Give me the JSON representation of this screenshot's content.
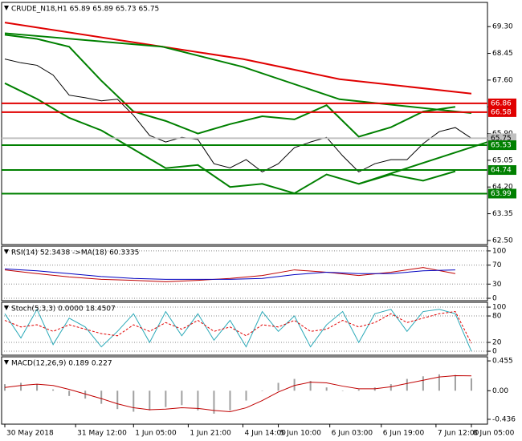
{
  "chart_data": [
    {
      "type": "line",
      "title": "CRUDE_N18,H1  65.89 65.89 65.73 65.75",
      "xlim": [
        -1,
        150
      ],
      "ylim": [
        62.37,
        70.07
      ],
      "grid": false,
      "yticks": [
        {
          "value": 69.3,
          "label": "69.30"
        },
        68.45,
        {
          "value": 67.6,
          "label": "67.60"
        },
        66.75,
        {
          "value": 65.9,
          "label": "65.90"
        },
        65.05,
        {
          "value": 64.2,
          "label": "64.20"
        },
        63.35,
        {
          "value": 62.5,
          "label": "62.50"
        }
      ],
      "series": [
        {
          "color": "#000000",
          "x": [
            0,
            5,
            10,
            15,
            20,
            25,
            30,
            35,
            40,
            45,
            50,
            55,
            60,
            65,
            70,
            75,
            80,
            85,
            90,
            95,
            100,
            105,
            110,
            115,
            120,
            125,
            130,
            135,
            140,
            145
          ],
          "values": [
            68.27,
            68.15,
            68.07,
            67.76,
            67.12,
            67.04,
            66.94,
            66.99,
            66.48,
            65.84,
            65.63,
            65.78,
            65.71,
            64.94,
            64.81,
            65.07,
            64.68,
            64.94,
            65.45,
            65.63,
            65.78,
            65.19,
            64.68,
            64.94,
            65.07,
            65.07,
            65.58,
            65.96,
            66.09,
            65.75
          ]
        },
        {
          "color": "#e00000",
          "x": [
            0,
            49,
            74,
            104,
            145
          ],
          "values": [
            69.43,
            68.66,
            68.27,
            67.63,
            67.17
          ]
        },
        {
          "color": "#008000",
          "x": [
            0,
            49,
            74,
            104,
            145
          ],
          "values": [
            69.09,
            68.66,
            68.02,
            66.99,
            66.55
          ]
        },
        {
          "color": "#008000",
          "x": [
            0,
            10,
            20,
            30,
            40,
            50,
            60,
            70,
            80,
            90,
            100,
            110,
            120,
            130,
            140
          ],
          "values": [
            69.04,
            68.91,
            68.66,
            67.58,
            66.6,
            66.3,
            65.9,
            66.2,
            66.45,
            66.35,
            66.8,
            65.8,
            66.1,
            66.6,
            66.75
          ]
        },
        {
          "color": "#008000",
          "x": [
            0,
            10,
            20,
            30,
            40,
            50,
            60,
            70,
            80,
            90,
            100,
            110,
            120,
            130,
            140
          ],
          "values": [
            67.5,
            67.0,
            66.4,
            66.0,
            65.4,
            64.8,
            64.9,
            64.2,
            64.3,
            64.0,
            64.6,
            64.3,
            64.6,
            64.4,
            64.7
          ]
        },
        {
          "color": "#008000",
          "x": [
            110,
            150
          ],
          "values": [
            64.3,
            65.63
          ]
        }
      ],
      "hlines": [
        {
          "value": 66.86,
          "color": "#e00000"
        },
        {
          "value": 66.58,
          "color": "#e00000"
        },
        {
          "value": 65.75,
          "color": "#c0c0c0"
        },
        {
          "value": 65.53,
          "color": "#008000"
        },
        {
          "value": 64.74,
          "color": "#008000"
        },
        {
          "value": 63.99,
          "color": "#008000"
        }
      ]
    },
    {
      "type": "line",
      "title": "RSI(14) 52.3438  ->MA(18) 60.3335",
      "xlim": [
        -1,
        150
      ],
      "ylim": [
        -5,
        110
      ],
      "grid": true,
      "yticks": [
        100,
        70,
        30,
        0
      ],
      "series": [
        {
          "color": "#c00000",
          "x": [
            0,
            10,
            20,
            30,
            40,
            50,
            60,
            70,
            80,
            90,
            100,
            110,
            120,
            130,
            140
          ],
          "values": [
            60,
            52,
            45,
            40,
            38,
            35,
            38,
            42,
            48,
            60,
            55,
            48,
            55,
            65,
            52
          ]
        },
        {
          "color": "#0000c0",
          "x": [
            0,
            10,
            20,
            30,
            40,
            50,
            60,
            70,
            80,
            90,
            100,
            110,
            120,
            130,
            140
          ],
          "values": [
            62,
            58,
            52,
            46,
            42,
            40,
            40,
            40,
            42,
            50,
            55,
            52,
            52,
            58,
            60
          ]
        }
      ]
    },
    {
      "type": "line",
      "title": "Stoch(5,3,3) 0.0000 18.4507",
      "xlim": [
        -1,
        150
      ],
      "ylim": [
        -9,
        111
      ],
      "grid": true,
      "yticks": [
        100,
        80,
        20,
        0
      ],
      "series": [
        {
          "color": "#2aa9b8",
          "x": [
            0,
            5,
            10,
            15,
            20,
            25,
            30,
            35,
            40,
            45,
            50,
            55,
            60,
            65,
            70,
            75,
            80,
            85,
            90,
            95,
            100,
            105,
            110,
            115,
            120,
            125,
            130,
            135,
            140,
            145
          ],
          "values": [
            85,
            30,
            95,
            15,
            75,
            55,
            10,
            45,
            85,
            20,
            90,
            35,
            85,
            25,
            70,
            10,
            90,
            45,
            80,
            10,
            60,
            90,
            20,
            85,
            95,
            45,
            90,
            95,
            85,
            0
          ]
        },
        {
          "color": "#e00000",
          "dashed": true,
          "x": [
            0,
            5,
            10,
            15,
            20,
            25,
            30,
            35,
            40,
            45,
            50,
            55,
            60,
            65,
            70,
            75,
            80,
            85,
            90,
            95,
            100,
            105,
            110,
            115,
            120,
            125,
            130,
            135,
            140,
            145
          ],
          "values": [
            70,
            55,
            60,
            45,
            60,
            50,
            40,
            35,
            60,
            45,
            65,
            50,
            70,
            45,
            55,
            35,
            60,
            55,
            70,
            45,
            50,
            70,
            55,
            65,
            85,
            65,
            75,
            85,
            90,
            18
          ]
        }
      ]
    },
    {
      "type": "line",
      "title": "MACD(12,26,9) 0.189 0.227",
      "xlim": [
        -1,
        150
      ],
      "ylim": [
        -0.51,
        0.517
      ],
      "grid": false,
      "yticks": [
        0.455,
        {
          "value": 0,
          "label": "0.00"
        },
        -0.436
      ],
      "xticks": [
        {
          "value": 0,
          "label": "30 May 2018"
        },
        {
          "value": 22,
          "label": "31 May 12:00"
        },
        {
          "value": 40,
          "label": "1 Jun 05:00"
        },
        {
          "value": 57,
          "label": "1 Jun 21:00"
        },
        {
          "value": 74,
          "label": "4 Jun 14:00"
        },
        {
          "value": 85,
          "label": "5 Jun 10:00"
        },
        {
          "value": 101,
          "label": "6 Jun 03:00"
        },
        {
          "value": 117,
          "label": "6 Jun 19:00"
        },
        {
          "value": 134,
          "label": "7 Jun 12:00"
        },
        {
          "value": 145,
          "label": "8 Jun 05:00"
        }
      ],
      "series": [
        {
          "type": "bar",
          "color": "#a0a0a0",
          "x": [
            0,
            5,
            10,
            15,
            20,
            25,
            30,
            35,
            40,
            45,
            50,
            55,
            60,
            65,
            70,
            75,
            80,
            85,
            90,
            95,
            100,
            105,
            110,
            115,
            120,
            125,
            130,
            135,
            140,
            145
          ],
          "values": [
            0.1,
            0.12,
            0.1,
            0.02,
            -0.08,
            -0.12,
            -0.2,
            -0.28,
            -0.32,
            -0.3,
            -0.25,
            -0.22,
            -0.3,
            -0.35,
            -0.3,
            -0.15,
            0.0,
            0.12,
            0.18,
            0.15,
            0.05,
            0.0,
            0.02,
            0.05,
            0.1,
            0.18,
            0.22,
            0.25,
            0.24,
            0.189
          ]
        },
        {
          "color": "#c00000",
          "x": [
            0,
            5,
            10,
            15,
            20,
            25,
            30,
            35,
            40,
            45,
            50,
            55,
            60,
            65,
            70,
            75,
            80,
            85,
            90,
            95,
            100,
            105,
            110,
            115,
            120,
            125,
            130,
            135,
            140,
            145
          ],
          "values": [
            0.05,
            0.08,
            0.1,
            0.08,
            0.02,
            -0.05,
            -0.12,
            -0.2,
            -0.26,
            -0.29,
            -0.28,
            -0.26,
            -0.27,
            -0.3,
            -0.32,
            -0.26,
            -0.15,
            -0.02,
            0.08,
            0.13,
            0.12,
            0.07,
            0.03,
            0.03,
            0.06,
            0.11,
            0.16,
            0.21,
            0.23,
            0.227
          ]
        }
      ]
    }
  ]
}
